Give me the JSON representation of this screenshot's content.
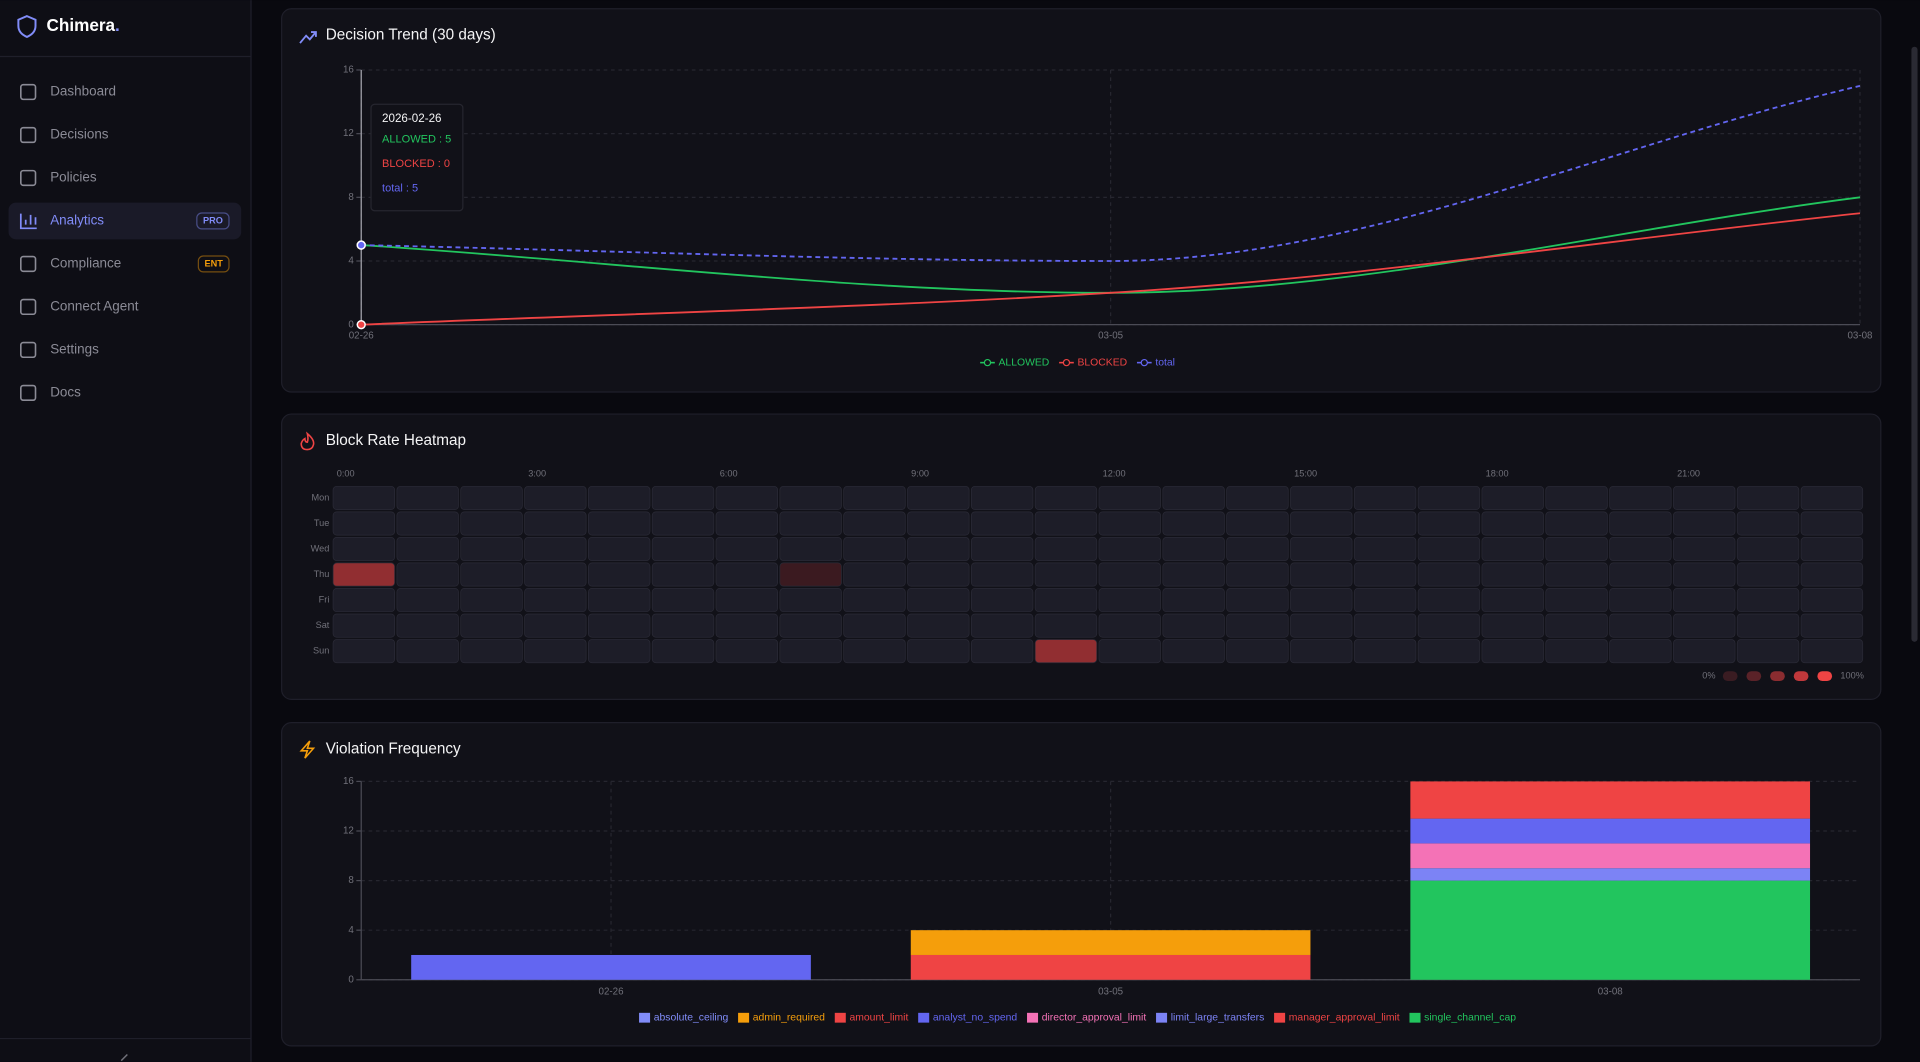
{
  "sidebar": {
    "brand": "Chimera",
    "brand_suffix": ".",
    "nav": [
      {
        "label": "Dashboard"
      },
      {
        "label": "Decisions"
      },
      {
        "label": "Policies"
      },
      {
        "label": "Analytics",
        "badge": "PRO",
        "badge_color": "#818cf8",
        "active": true
      },
      {
        "label": "Compliance",
        "badge": "ENT",
        "badge_color": "#f59e0b"
      },
      {
        "label": "Connect Agent"
      },
      {
        "label": "Settings"
      },
      {
        "label": "Docs"
      }
    ]
  },
  "chart_data": [
    {
      "type": "line",
      "title": "Decision Trend (30 days)",
      "categories": [
        "02-26",
        "03-05",
        "03-08"
      ],
      "series": [
        {
          "name": "ALLOWED",
          "color": "#22c55e",
          "values": [
            5,
            2,
            8
          ]
        },
        {
          "name": "BLOCKED",
          "color": "#ef4444",
          "values": [
            0,
            2,
            7
          ]
        },
        {
          "name": "total",
          "color": "#6366f1",
          "dashed": true,
          "values": [
            5,
            4,
            15
          ]
        }
      ],
      "ylim": [
        0,
        16
      ],
      "yticks": [
        0,
        4,
        8,
        12,
        16
      ],
      "grid": true,
      "legend": "bottom",
      "tooltip": {
        "title": "2026-02-26",
        "items": [
          "ALLOWED : 5",
          "BLOCKED : 0",
          "total : 5"
        ]
      }
    },
    {
      "type": "heatmap",
      "title": "Block Rate Heatmap",
      "categories": [
        "0:00",
        null,
        null,
        "3:00",
        null,
        null,
        "6:00",
        null,
        null,
        "9:00",
        null,
        null,
        "12:00",
        null,
        null,
        "15:00",
        null,
        null,
        "18:00",
        null,
        null,
        "21:00",
        null,
        null
      ],
      "rows": [
        "Mon",
        "Tue",
        "Wed",
        "Thu",
        "Fri",
        "Sat",
        "Sun"
      ],
      "values": [
        [
          0,
          0,
          0,
          0,
          0,
          0,
          0,
          0,
          0,
          0,
          0,
          0,
          0,
          0,
          0,
          0,
          0,
          0,
          0,
          0,
          0,
          0,
          0,
          0
        ],
        [
          0,
          0,
          0,
          0,
          0,
          0,
          0,
          0,
          0,
          0,
          0,
          0,
          0,
          0,
          0,
          0,
          0,
          0,
          0,
          0,
          0,
          0,
          0,
          0
        ],
        [
          0,
          0,
          0,
          0,
          0,
          0,
          0,
          0,
          0,
          0,
          0,
          0,
          0,
          0,
          0,
          0,
          0,
          0,
          0,
          0,
          0,
          0,
          0,
          0
        ],
        [
          50,
          0,
          0,
          0,
          0,
          0,
          0,
          5,
          0,
          0,
          0,
          0,
          0,
          0,
          0,
          0,
          0,
          0,
          0,
          0,
          0,
          0,
          0,
          0
        ],
        [
          0,
          0,
          0,
          0,
          0,
          0,
          0,
          0,
          0,
          0,
          0,
          0,
          0,
          0,
          0,
          0,
          0,
          0,
          0,
          0,
          0,
          0,
          0,
          0
        ],
        [
          0,
          0,
          0,
          0,
          0,
          0,
          0,
          0,
          0,
          0,
          0,
          0,
          0,
          0,
          0,
          0,
          0,
          0,
          0,
          0,
          0,
          0,
          0,
          0
        ],
        [
          0,
          0,
          0,
          0,
          0,
          0,
          0,
          0,
          0,
          0,
          0,
          50,
          0,
          0,
          0,
          0,
          0,
          0,
          0,
          0,
          0,
          0,
          0,
          0
        ]
      ],
      "color": "#ef4444",
      "scale_labels": [
        "0%",
        "100%"
      ],
      "scale_colors": [
        "#3a1c22",
        "#5a2228",
        "#8b2c30",
        "#c0383b",
        "#ef4444"
      ]
    },
    {
      "type": "stacked_bar",
      "title": "Violation Frequency",
      "categories": [
        "02-26",
        "03-05",
        "03-08"
      ],
      "series": [
        {
          "name": "absolute_ceiling",
          "color": "#818cf8",
          "values": [
            0,
            0,
            0
          ]
        },
        {
          "name": "admin_required",
          "color": "#f59e0b",
          "values": [
            0,
            2,
            0
          ]
        },
        {
          "name": "amount_limit",
          "color": "#ef4444",
          "values": [
            0,
            2,
            3
          ]
        },
        {
          "name": "analyst_no_spend",
          "color": "#6366f1",
          "values": [
            2,
            0,
            2
          ]
        },
        {
          "name": "director_approval_limit",
          "color": "#f472b6",
          "values": [
            0,
            0,
            2
          ]
        },
        {
          "name": "limit_large_transfers",
          "color": "#7c83f5",
          "values": [
            0,
            0,
            1
          ]
        },
        {
          "name": "manager_approval_limit",
          "color": "#ef4444",
          "values": [
            0,
            0,
            0
          ]
        },
        {
          "name": "single_channel_cap",
          "color": "#22c55e",
          "values": [
            0,
            0,
            8
          ]
        }
      ],
      "ylim": [
        0,
        16
      ],
      "yticks": [
        0,
        4,
        8,
        12,
        16
      ],
      "grid": true,
      "legend": "bottom"
    }
  ]
}
